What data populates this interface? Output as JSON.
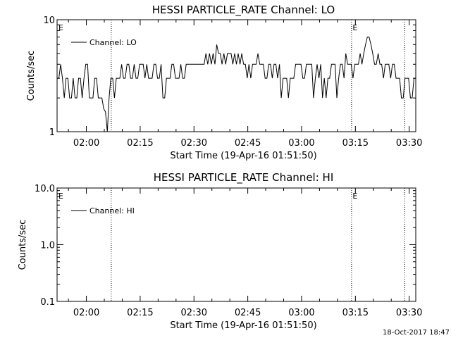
{
  "chart_data": [
    {
      "type": "line",
      "title": "HESSI PARTICLE_RATE Channel: LO",
      "xlabel": "Start Time (19-Apr-16 01:51:50)",
      "ylabel": "Counts/sec",
      "yscale": "log",
      "ylim": [
        1,
        10
      ],
      "xlim_minutes_after_start": [
        0,
        100
      ],
      "yticks": [
        {
          "value": 1,
          "label": "1"
        },
        {
          "value": 10,
          "label": "10"
        }
      ],
      "xticks": [
        {
          "value": 8.1667,
          "label": "02:00"
        },
        {
          "value": 23.1667,
          "label": "02:15"
        },
        {
          "value": 38.1667,
          "label": "02:30"
        },
        {
          "value": 53.1667,
          "label": "02:45"
        },
        {
          "value": 68.1667,
          "label": "03:00"
        },
        {
          "value": 83.1667,
          "label": "03:15"
        },
        {
          "value": 98.1667,
          "label": "03:30"
        }
      ],
      "event_lines": [
        15.1,
        82.1,
        96.9
      ],
      "event_marks": [
        {
          "x": 0.4,
          "label": "E"
        },
        {
          "x": 82.4,
          "label": "E"
        }
      ],
      "legend": {
        "placement": "top-left",
        "entries": [
          "Channel: LO"
        ]
      },
      "series": [
        {
          "name": "Channel: LO",
          "points": [
            [
              0,
              3
            ],
            [
              0.5,
              3
            ],
            [
              1,
              4
            ],
            [
              1.5,
              3
            ],
            [
              2,
              2
            ],
            [
              2.5,
              3
            ],
            [
              3,
              3
            ],
            [
              3.5,
              2
            ],
            [
              4,
              2
            ],
            [
              4.5,
              3
            ],
            [
              5,
              2
            ],
            [
              5.5,
              2
            ],
            [
              6,
              3
            ],
            [
              6.5,
              3
            ],
            [
              7,
              2
            ],
            [
              7.5,
              3
            ],
            [
              8,
              4
            ],
            [
              8.5,
              4
            ],
            [
              9,
              2
            ],
            [
              9.5,
              2
            ],
            [
              10,
              2
            ],
            [
              10.5,
              3
            ],
            [
              11,
              3
            ],
            [
              11.5,
              2
            ],
            [
              12,
              2
            ],
            [
              12.5,
              2
            ],
            [
              13,
              1.6
            ],
            [
              13.5,
              1.5
            ],
            [
              14,
              1
            ],
            [
              14.5,
              2
            ],
            [
              15,
              3
            ],
            [
              15.5,
              3
            ],
            [
              16,
              2
            ],
            [
              16.5,
              3
            ],
            [
              17,
              3
            ],
            [
              17.5,
              3
            ],
            [
              18,
              4
            ],
            [
              18.5,
              3
            ],
            [
              19,
              3
            ],
            [
              19.5,
              4
            ],
            [
              20,
              4
            ],
            [
              20.5,
              3
            ],
            [
              21,
              3
            ],
            [
              21.5,
              4
            ],
            [
              22,
              3
            ],
            [
              22.5,
              3
            ],
            [
              23,
              4
            ],
            [
              23.5,
              4
            ],
            [
              24,
              4
            ],
            [
              24.5,
              3
            ],
            [
              25,
              4
            ],
            [
              25.5,
              3
            ],
            [
              26,
              3
            ],
            [
              26.5,
              3
            ],
            [
              27,
              4
            ],
            [
              27.5,
              4
            ],
            [
              28,
              3
            ],
            [
              28.5,
              3
            ],
            [
              29,
              4
            ],
            [
              29.5,
              2
            ],
            [
              30,
              2
            ],
            [
              30.5,
              3
            ],
            [
              31,
              3
            ],
            [
              31.5,
              3
            ],
            [
              32,
              4
            ],
            [
              32.5,
              4
            ],
            [
              33,
              3
            ],
            [
              33.5,
              3
            ],
            [
              34,
              3
            ],
            [
              34.5,
              4
            ],
            [
              35,
              3
            ],
            [
              35.5,
              3
            ],
            [
              36,
              4
            ],
            [
              36.5,
              4
            ],
            [
              37,
              4
            ],
            [
              37.5,
              4
            ],
            [
              38,
              4
            ],
            [
              38.5,
              4
            ],
            [
              39,
              4
            ],
            [
              39.5,
              4
            ],
            [
              40,
              4
            ],
            [
              40.5,
              4
            ],
            [
              41,
              4
            ],
            [
              41.5,
              5
            ],
            [
              42,
              4
            ],
            [
              42.5,
              5
            ],
            [
              43,
              4
            ],
            [
              43.5,
              5
            ],
            [
              44,
              4
            ],
            [
              44.5,
              6
            ],
            [
              45,
              5
            ],
            [
              45.5,
              5
            ],
            [
              46,
              4
            ],
            [
              46.5,
              5
            ],
            [
              47,
              4
            ],
            [
              47.5,
              5
            ],
            [
              48,
              5
            ],
            [
              48.5,
              5
            ],
            [
              49,
              4
            ],
            [
              49.5,
              5
            ],
            [
              50,
              4
            ],
            [
              50.5,
              5
            ],
            [
              51,
              4
            ],
            [
              51.5,
              5
            ],
            [
              52,
              4
            ],
            [
              52.5,
              4
            ],
            [
              53,
              3
            ],
            [
              53.5,
              4
            ],
            [
              54,
              3
            ],
            [
              54.5,
              4
            ],
            [
              55,
              4
            ],
            [
              55.5,
              4
            ],
            [
              56,
              5
            ],
            [
              56.5,
              4
            ],
            [
              57,
              4
            ],
            [
              57.5,
              4
            ],
            [
              58,
              3
            ],
            [
              58.5,
              3
            ],
            [
              59,
              4
            ],
            [
              59.5,
              4
            ],
            [
              60,
              3
            ],
            [
              60.5,
              4
            ],
            [
              61,
              4
            ],
            [
              61.5,
              3
            ],
            [
              62,
              4
            ],
            [
              62.5,
              2
            ],
            [
              63,
              3
            ],
            [
              63.5,
              3
            ],
            [
              64,
              3
            ],
            [
              64.5,
              2
            ],
            [
              65,
              3
            ],
            [
              65.5,
              3
            ],
            [
              66,
              3
            ],
            [
              66.5,
              4
            ],
            [
              67,
              4
            ],
            [
              67.5,
              4
            ],
            [
              68,
              4
            ],
            [
              68.5,
              3
            ],
            [
              69,
              3
            ],
            [
              69.5,
              4
            ],
            [
              70,
              4
            ],
            [
              70.5,
              4
            ],
            [
              71,
              4
            ],
            [
              71.5,
              2
            ],
            [
              72,
              3
            ],
            [
              72.5,
              4
            ],
            [
              73,
              3
            ],
            [
              73.5,
              4
            ],
            [
              74,
              2
            ],
            [
              74.5,
              3
            ],
            [
              75,
              2
            ],
            [
              75.5,
              3
            ],
            [
              76,
              3
            ],
            [
              76.5,
              4
            ],
            [
              77,
              4
            ],
            [
              77.5,
              4
            ],
            [
              78,
              2
            ],
            [
              78.5,
              3
            ],
            [
              79,
              4
            ],
            [
              79.5,
              4
            ],
            [
              80,
              3
            ],
            [
              80.5,
              5
            ],
            [
              81,
              4
            ],
            [
              81.5,
              4
            ],
            [
              82,
              4
            ],
            [
              82.5,
              3
            ],
            [
              83,
              4
            ],
            [
              83.5,
              4
            ],
            [
              84,
              4
            ],
            [
              84.5,
              5
            ],
            [
              85,
              4
            ],
            [
              85.5,
              5
            ],
            [
              86,
              6
            ],
            [
              86.5,
              7
            ],
            [
              87,
              7
            ],
            [
              87.5,
              6
            ],
            [
              88,
              5
            ],
            [
              88.5,
              4
            ],
            [
              89,
              4
            ],
            [
              89.5,
              5
            ],
            [
              90,
              4
            ],
            [
              90.5,
              4
            ],
            [
              91,
              3
            ],
            [
              91.5,
              4
            ],
            [
              92,
              4
            ],
            [
              92.5,
              4
            ],
            [
              93,
              3
            ],
            [
              93.5,
              4
            ],
            [
              94,
              4
            ],
            [
              94.5,
              3
            ],
            [
              95,
              3
            ],
            [
              95.5,
              3
            ],
            [
              96,
              2
            ],
            [
              96.5,
              2
            ],
            [
              97,
              3
            ],
            [
              97.5,
              3
            ],
            [
              98,
              3
            ],
            [
              98.5,
              2
            ],
            [
              99,
              2
            ],
            [
              99.5,
              3
            ],
            [
              100,
              3
            ]
          ]
        }
      ]
    },
    {
      "type": "line",
      "title": "HESSI PARTICLE_RATE Channel: HI",
      "xlabel": "Start Time (19-Apr-16 01:51:50)",
      "ylabel": "Counts/sec",
      "yscale": "log",
      "ylim": [
        0.1,
        10
      ],
      "xlim_minutes_after_start": [
        0,
        100
      ],
      "yticks": [
        {
          "value": 0.1,
          "label": "0.1"
        },
        {
          "value": 1,
          "label": "1.0"
        },
        {
          "value": 10,
          "label": "10.0"
        }
      ],
      "xticks": [
        {
          "value": 8.1667,
          "label": "02:00"
        },
        {
          "value": 23.1667,
          "label": "02:15"
        },
        {
          "value": 38.1667,
          "label": "02:30"
        },
        {
          "value": 53.1667,
          "label": "02:45"
        },
        {
          "value": 68.1667,
          "label": "03:00"
        },
        {
          "value": 83.1667,
          "label": "03:15"
        },
        {
          "value": 98.1667,
          "label": "03:30"
        }
      ],
      "event_lines": [
        15.1,
        82.1,
        96.9
      ],
      "event_marks": [
        {
          "x": 0.4,
          "label": "E"
        },
        {
          "x": 82.4,
          "label": "E"
        }
      ],
      "legend": {
        "placement": "top-left",
        "entries": [
          "Channel: HI"
        ]
      },
      "series": [
        {
          "name": "Channel: HI",
          "points": []
        }
      ]
    }
  ],
  "footer": {
    "timestamp": "18-Oct-2017 18:47"
  }
}
